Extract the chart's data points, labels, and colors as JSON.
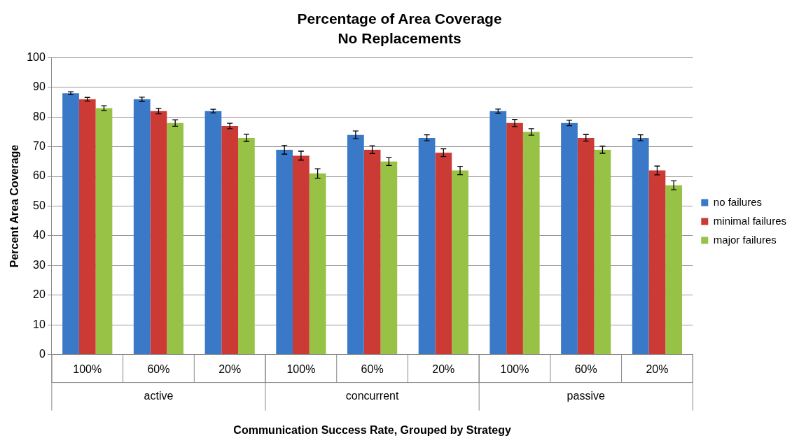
{
  "chart_data": {
    "type": "bar",
    "title": "Percentage of Area Coverage",
    "subtitle": "No Replacements",
    "xlabel": "Communication Success Rate, Grouped by Strategy",
    "ylabel": "Percent Area Coverage",
    "categories": [
      "100%",
      "60%",
      "20%",
      "100%",
      "60%",
      "20%",
      "100%",
      "60%",
      "20%"
    ],
    "annotations": [
      "active",
      "concurrent",
      "passive"
    ],
    "series": [
      {
        "name": "no failures",
        "color": "#3a78c8",
        "values": [
          88,
          86,
          82,
          69,
          74,
          73,
          82,
          78,
          73
        ],
        "errors": [
          0.5,
          0.7,
          0.6,
          1.5,
          1.3,
          1.0,
          0.7,
          0.9,
          1.0
        ]
      },
      {
        "name": "minimal failures",
        "color": "#cc3a36",
        "values": [
          86,
          82,
          77,
          67,
          69,
          68,
          78,
          73,
          62
        ],
        "errors": [
          0.6,
          0.9,
          0.9,
          1.5,
          1.3,
          1.3,
          1.2,
          1.1,
          1.5
        ]
      },
      {
        "name": "major failures",
        "color": "#98c246",
        "values": [
          83,
          78,
          73,
          61,
          65,
          62,
          75,
          69,
          57
        ],
        "errors": [
          0.8,
          1.1,
          1.2,
          1.6,
          1.3,
          1.4,
          1.1,
          1.2,
          1.5
        ]
      }
    ],
    "ylim": [
      0,
      100
    ],
    "yticks": [
      0,
      10,
      20,
      30,
      40,
      50,
      60,
      70,
      80,
      90,
      100
    ],
    "grid": "y",
    "legend": "right"
  }
}
